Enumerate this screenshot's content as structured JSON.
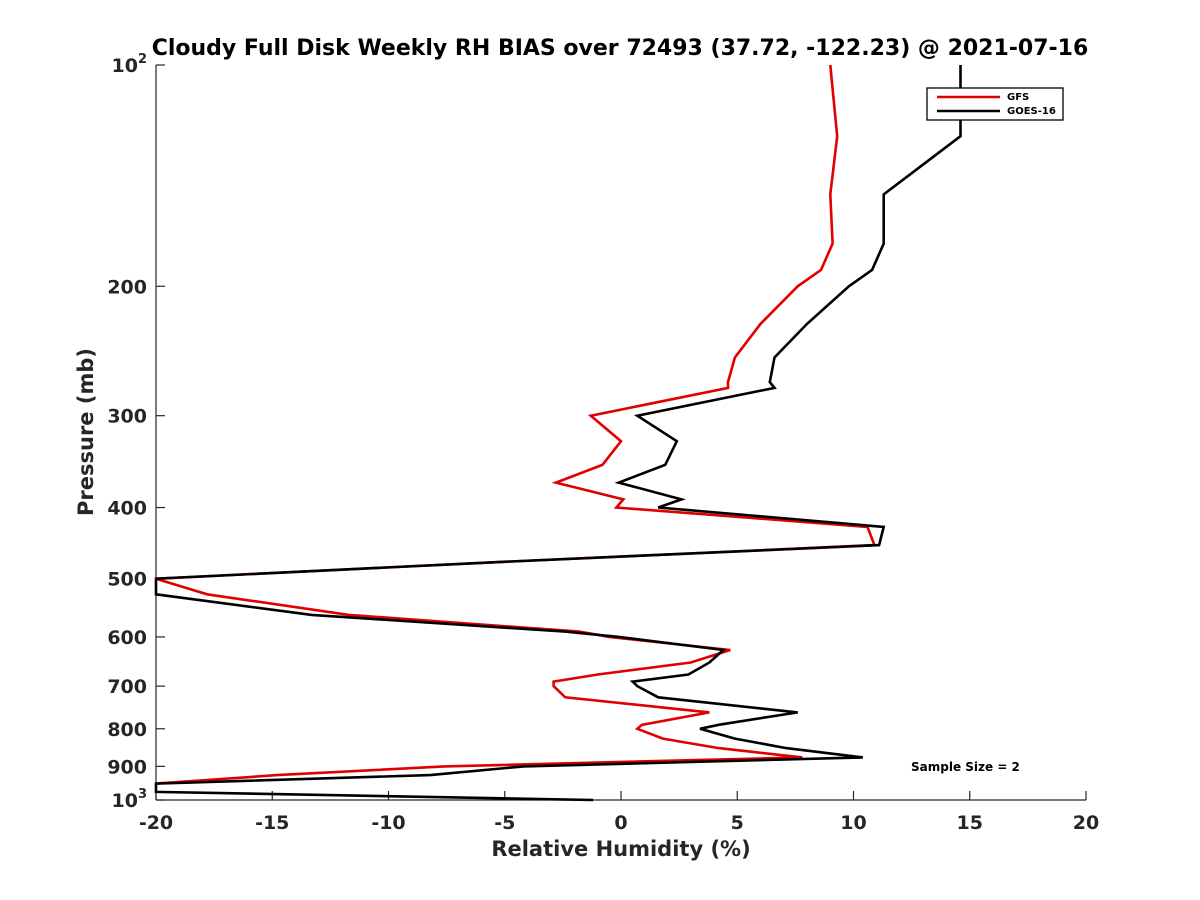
{
  "chart_data": {
    "type": "line",
    "title": "Cloudy Full Disk Weekly RH BIAS over 72493 (37.72, -122.23) @ 2021-07-16",
    "xlabel": "Relative Humidity (%)",
    "ylabel": "Pressure (mb)",
    "xlim": [
      -20,
      20
    ],
    "ylim": [
      100,
      1000
    ],
    "y_scale": "log",
    "y_reversed": true,
    "x_ticks": [
      -20,
      -15,
      -10,
      -5,
      0,
      5,
      10,
      15,
      20
    ],
    "x_tick_labels": [
      "-20",
      "-15",
      "-10",
      "-5",
      "0",
      "5",
      "10",
      "15",
      "20"
    ],
    "y_ticks": [
      100,
      200,
      300,
      400,
      500,
      600,
      700,
      800,
      900,
      1000
    ],
    "y_tick_labels": [
      {
        "base": "10",
        "exp": "2"
      },
      {
        "base": "200",
        "exp": ""
      },
      {
        "base": "300",
        "exp": ""
      },
      {
        "base": "400",
        "exp": ""
      },
      {
        "base": "500",
        "exp": ""
      },
      {
        "base": "600",
        "exp": ""
      },
      {
        "base": "700",
        "exp": ""
      },
      {
        "base": "800",
        "exp": ""
      },
      {
        "base": "900",
        "exp": ""
      },
      {
        "base": "10",
        "exp": "3"
      }
    ],
    "grid": false,
    "legend_position": "top-right",
    "annotation": "Sample Size = 2",
    "series": [
      {
        "name": "GFS",
        "color": "#e00000",
        "points": [
          [
            9.0,
            100
          ],
          [
            9.3,
            125
          ],
          [
            9.0,
            150
          ],
          [
            9.1,
            175
          ],
          [
            8.6,
            190
          ],
          [
            7.6,
            200
          ],
          [
            6.0,
            225
          ],
          [
            4.9,
            250
          ],
          [
            4.6,
            270
          ],
          [
            4.6,
            275
          ],
          [
            -1.3,
            300
          ],
          [
            0.0,
            325
          ],
          [
            -0.8,
            350
          ],
          [
            -2.8,
            370
          ],
          [
            0.1,
            390
          ],
          [
            -0.2,
            400
          ],
          [
            10.6,
            425
          ],
          [
            10.9,
            450
          ],
          [
            -5.6,
            475
          ],
          [
            -20.0,
            500
          ],
          [
            -17.8,
            525
          ],
          [
            -11.7,
            560
          ],
          [
            -1.8,
            590
          ],
          [
            -0.5,
            600
          ],
          [
            4.7,
            625
          ],
          [
            3.0,
            650
          ],
          [
            -1.0,
            675
          ],
          [
            -2.9,
            690
          ],
          [
            -2.9,
            700
          ],
          [
            -2.4,
            725
          ],
          [
            3.8,
            760
          ],
          [
            0.9,
            790
          ],
          [
            0.7,
            800
          ],
          [
            1.8,
            825
          ],
          [
            4.2,
            850
          ],
          [
            7.8,
            875
          ],
          [
            -7.6,
            900
          ],
          [
            -14.8,
            925
          ],
          [
            -20.0,
            950
          ]
        ]
      },
      {
        "name": "GOES-16",
        "color": "#000000",
        "points": [
          [
            14.6,
            100
          ],
          [
            14.6,
            125
          ],
          [
            11.3,
            150
          ],
          [
            11.3,
            175
          ],
          [
            10.8,
            190
          ],
          [
            9.8,
            200
          ],
          [
            8.0,
            225
          ],
          [
            6.6,
            250
          ],
          [
            6.4,
            270
          ],
          [
            6.6,
            275
          ],
          [
            0.7,
            300
          ],
          [
            2.4,
            325
          ],
          [
            1.9,
            350
          ],
          [
            -0.1,
            370
          ],
          [
            2.6,
            390
          ],
          [
            1.6,
            400
          ],
          [
            11.3,
            425
          ],
          [
            11.1,
            450
          ],
          [
            -5.6,
            475
          ],
          [
            -20.0,
            500
          ],
          [
            -20.0,
            525
          ],
          [
            -13.3,
            560
          ],
          [
            -2.4,
            590
          ],
          [
            -0.1,
            600
          ],
          [
            4.4,
            625
          ],
          [
            3.8,
            650
          ],
          [
            2.9,
            675
          ],
          [
            0.5,
            690
          ],
          [
            0.7,
            700
          ],
          [
            1.6,
            725
          ],
          [
            7.6,
            760
          ],
          [
            4.2,
            790
          ],
          [
            3.4,
            800
          ],
          [
            4.9,
            825
          ],
          [
            7.1,
            850
          ],
          [
            10.4,
            875
          ],
          [
            -4.2,
            900
          ],
          [
            -8.2,
            925
          ],
          [
            -20.0,
            950
          ],
          [
            -20.0,
            975
          ],
          [
            -1.2,
            1000
          ]
        ]
      }
    ]
  }
}
